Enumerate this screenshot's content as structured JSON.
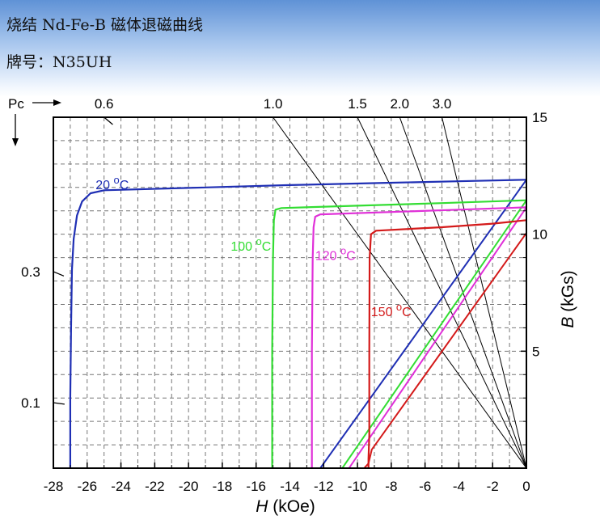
{
  "header": {
    "title": "烧结 Nd-Fe-B 磁体退磁曲线",
    "grade": "牌号：N35UH"
  },
  "chart_data": {
    "type": "line",
    "title": "",
    "xlabel_italic": "H",
    "xlabel_unit": "(kOe)",
    "ylabel_italic": "B",
    "ylabel_unit": "(kGs)",
    "xlim": [
      -28,
      0
    ],
    "ylim": [
      0,
      15
    ],
    "x_ticks": [
      -28,
      -26,
      -24,
      -22,
      -20,
      -18,
      -16,
      -14,
      -12,
      -10,
      -8,
      -6,
      -4,
      -2,
      0
    ],
    "y_tick_labels": [
      {
        "value": 15,
        "label": "15"
      },
      {
        "value": 10,
        "label": "10"
      },
      {
        "value": 5,
        "label": "5"
      }
    ],
    "grid": true,
    "pc_label": "Pc",
    "load_lines": [
      {
        "label": "0.6",
        "slope": 0.6,
        "show_line": false
      },
      {
        "label": "",
        "slope": 0.3,
        "show_line": false
      },
      {
        "label": "",
        "slope": 0.1,
        "show_line": false
      },
      {
        "label": "1.0",
        "slope": 1.0,
        "show_line": true
      },
      {
        "label": "1.5",
        "slope": 1.5,
        "show_line": true
      },
      {
        "label": "2.0",
        "slope": 2.0,
        "show_line": true
      },
      {
        "label": "3.0",
        "slope": 3.0,
        "show_line": true
      }
    ],
    "pc_side_labels": [
      {
        "label": "0.3",
        "slope": 0.3
      },
      {
        "label": "0.1",
        "slope": 0.1
      }
    ],
    "series": [
      {
        "temp": "20",
        "color": "#1f2fb4",
        "b_curve": [
          [
            -27,
            0
          ],
          [
            -27,
            3
          ],
          [
            -26.95,
            6
          ],
          [
            -26.9,
            8.5
          ],
          [
            -26.8,
            9.8
          ],
          [
            -26.6,
            10.8
          ],
          [
            -26.3,
            11.4
          ],
          [
            -25.8,
            11.75
          ],
          [
            -25,
            11.88
          ],
          [
            -20,
            11.98
          ],
          [
            -14,
            12.1
          ],
          [
            -8,
            12.2
          ],
          [
            -3,
            12.28
          ],
          [
            0,
            12.33
          ]
        ],
        "recoil": [
          [
            -12.2,
            0
          ],
          [
            0,
            12.33
          ]
        ]
      },
      {
        "temp": "100",
        "color": "#33dd33",
        "b_curve": [
          [
            -15.05,
            0
          ],
          [
            -15.05,
            5
          ],
          [
            -15,
            9
          ],
          [
            -14.95,
            10.6
          ],
          [
            -14.85,
            11.05
          ],
          [
            -14.5,
            11.12
          ],
          [
            -10,
            11.22
          ],
          [
            -5,
            11.33
          ],
          [
            0,
            11.45
          ]
        ],
        "recoil": [
          [
            -10.9,
            0
          ],
          [
            0,
            11.45
          ]
        ]
      },
      {
        "temp": "120",
        "color": "#e030d8",
        "b_curve": [
          [
            -12.7,
            0
          ],
          [
            -12.7,
            5
          ],
          [
            -12.65,
            9
          ],
          [
            -12.6,
            10.3
          ],
          [
            -12.5,
            10.75
          ],
          [
            -12.2,
            10.85
          ],
          [
            -8,
            10.95
          ],
          [
            -4,
            11.05
          ],
          [
            0,
            11.15
          ]
        ],
        "recoil": [
          [
            -10.5,
            0
          ],
          [
            0,
            11.15
          ]
        ]
      },
      {
        "temp": "150",
        "color": "#d41a1a",
        "b_curve": [
          [
            -9.35,
            0
          ],
          [
            -9.35,
            0.4
          ],
          [
            -9.3,
            1.4
          ],
          [
            -9.3,
            5
          ],
          [
            -9.28,
            9
          ],
          [
            -9.2,
            10.0
          ],
          [
            -8.9,
            10.15
          ],
          [
            -5,
            10.3
          ],
          [
            -2,
            10.45
          ],
          [
            0,
            10.6
          ]
        ],
        "recoil": [
          [
            -9.6,
            0
          ],
          [
            -9.35,
            0.2
          ],
          [
            -9.15,
            0.8
          ],
          [
            -8.6,
            1.35
          ],
          [
            0,
            10.05
          ]
        ]
      }
    ],
    "curve_labels": [
      {
        "series": 0,
        "value": "20",
        "unit": "C",
        "x": -25.5,
        "y": 11.92
      },
      {
        "series": 1,
        "value": "100",
        "unit": "C",
        "x": -17.5,
        "y": 9.3
      },
      {
        "series": 2,
        "value": "120",
        "unit": "C",
        "x": -12.5,
        "y": 8.9
      },
      {
        "series": 3,
        "value": "150",
        "unit": "C",
        "x": -9.2,
        "y": 6.5
      }
    ]
  }
}
